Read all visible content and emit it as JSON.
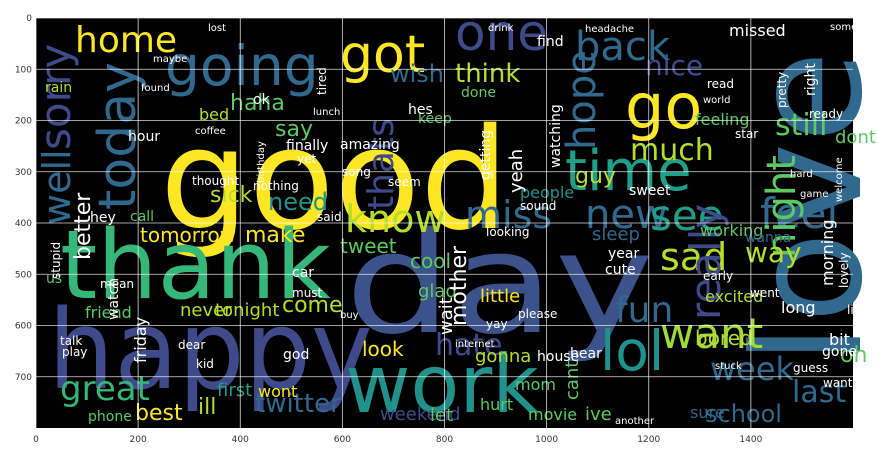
{
  "figure": {
    "background": "#ffffff",
    "plot_background": "#000000",
    "grid": true,
    "grid_color": "#ffffff",
    "x_ticks": [
      "0",
      "200",
      "400",
      "600",
      "800",
      "1000",
      "1200",
      "1400"
    ],
    "y_ticks": [
      "0",
      "100",
      "200",
      "300",
      "400",
      "500",
      "600",
      "700"
    ]
  },
  "wordcloud": {
    "palette": "viridis",
    "words": [
      {
        "text": "good",
        "color": "#fde725"
      },
      {
        "text": "day",
        "color": "#3b528b"
      },
      {
        "text": "love",
        "color": "#31688e"
      },
      {
        "text": "happy",
        "color": "#3e4a89"
      },
      {
        "text": "thank",
        "color": "#35b779"
      },
      {
        "text": "work",
        "color": "#21918c"
      },
      {
        "text": "got",
        "color": "#fde725"
      },
      {
        "text": "go",
        "color": "#fde725"
      },
      {
        "text": "going",
        "color": "#31688e"
      },
      {
        "text": "one",
        "color": "#3e4a89"
      },
      {
        "text": "home",
        "color": "#fde725"
      },
      {
        "text": "today",
        "color": "#31688e"
      },
      {
        "text": "back",
        "color": "#31688e"
      },
      {
        "text": "time",
        "color": "#1f9e89"
      },
      {
        "text": "know",
        "color": "#b5de2b"
      },
      {
        "text": "miss",
        "color": "#31688e"
      },
      {
        "text": "new",
        "color": "#31688e"
      },
      {
        "text": "see",
        "color": "#1f9e89"
      },
      {
        "text": "feel",
        "color": "#31688e"
      },
      {
        "text": "want",
        "color": "#a0da39"
      },
      {
        "text": "lol",
        "color": "#21918c"
      },
      {
        "text": "sad",
        "color": "#b5de2b"
      },
      {
        "text": "fun",
        "color": "#31688e"
      },
      {
        "text": "night",
        "color": "#5ec962"
      },
      {
        "text": "great",
        "color": "#35b779"
      },
      {
        "text": "last",
        "color": "#31688e"
      },
      {
        "text": "twitter",
        "color": "#31688e"
      },
      {
        "text": "much",
        "color": "#b5de2b"
      },
      {
        "text": "well",
        "color": "#31688e"
      },
      {
        "text": "sorry",
        "color": "#3e4a89"
      },
      {
        "text": "still",
        "color": "#5ec962"
      },
      {
        "text": "nice",
        "color": "#3e4a89"
      },
      {
        "text": "think",
        "color": "#b5de2b"
      },
      {
        "text": "wish",
        "color": "#31688e"
      },
      {
        "text": "haha",
        "color": "#5ec962"
      },
      {
        "text": "tomorrow",
        "color": "#fde725"
      },
      {
        "text": "make",
        "color": "#fde725"
      },
      {
        "text": "need",
        "color": "#21918c"
      },
      {
        "text": "thats",
        "color": "#3e4a89"
      },
      {
        "text": "really",
        "color": "#3e4a89"
      },
      {
        "text": "way",
        "color": "#b5de2b"
      },
      {
        "text": "hope",
        "color": "#31688e"
      },
      {
        "text": "come",
        "color": "#b5de2b"
      },
      {
        "text": "tonight",
        "color": "#b5de2b"
      },
      {
        "text": "never",
        "color": "#b5de2b"
      },
      {
        "text": "look",
        "color": "#fde725"
      },
      {
        "text": "hate",
        "color": "#3e4a89"
      },
      {
        "text": "week",
        "color": "#31688e"
      },
      {
        "text": "oh",
        "color": "#5ec962"
      },
      {
        "text": "ill",
        "color": "#b5de2b"
      },
      {
        "text": "best",
        "color": "#fde725"
      },
      {
        "text": "first",
        "color": "#1f9e89"
      },
      {
        "text": "wont",
        "color": "#fde725"
      },
      {
        "text": "weekend",
        "color": "#3e4a89"
      },
      {
        "text": "school",
        "color": "#31688e"
      },
      {
        "text": "sure",
        "color": "#31688e"
      },
      {
        "text": "bored",
        "color": "#b5de2b"
      },
      {
        "text": "friend",
        "color": "#5ec962"
      },
      {
        "text": "people",
        "color": "#21918c"
      },
      {
        "text": "guy",
        "color": "#b5de2b"
      },
      {
        "text": "sleep",
        "color": "#31688e"
      },
      {
        "text": "little",
        "color": "#fde725"
      },
      {
        "text": "gonna",
        "color": "#b5de2b"
      },
      {
        "text": "say",
        "color": "#5ec962"
      },
      {
        "text": "sick",
        "color": "#b5de2b"
      },
      {
        "text": "call",
        "color": "#5ec962"
      },
      {
        "text": "excited",
        "color": "#b5de2b"
      },
      {
        "text": "working",
        "color": "#5ec962"
      },
      {
        "text": "wanna",
        "color": "#31688e"
      },
      {
        "text": "dont",
        "color": "#5ec962"
      },
      {
        "text": "keep",
        "color": "#5ec962"
      },
      {
        "text": "cool",
        "color": "#5ec962"
      },
      {
        "text": "tweet",
        "color": "#5ec962"
      },
      {
        "text": "glad",
        "color": "#5ec962"
      },
      {
        "text": "done",
        "color": "#5ec962"
      },
      {
        "text": "bed",
        "color": "#b5de2b"
      },
      {
        "text": "rain",
        "color": "#b5de2b"
      },
      {
        "text": "us",
        "color": "#5ec962"
      },
      {
        "text": "phone",
        "color": "#5ec962"
      },
      {
        "text": "feeling",
        "color": "#5ec962"
      },
      {
        "text": "movie",
        "color": "#5ec962"
      },
      {
        "text": "let",
        "color": "#5ec962"
      },
      {
        "text": "ive",
        "color": "#5ec962"
      },
      {
        "text": "mom",
        "color": "#5ec962"
      },
      {
        "text": "hurt",
        "color": "#5ec962"
      },
      {
        "text": "cant",
        "color": "#5ec962"
      },
      {
        "text": "lost",
        "color": "#ffffff"
      },
      {
        "text": "missed",
        "color": "#ffffff"
      },
      {
        "text": "headache",
        "color": "#ffffff"
      },
      {
        "text": "someone",
        "color": "#ffffff"
      },
      {
        "text": "find",
        "color": "#ffffff"
      },
      {
        "text": "maybe",
        "color": "#ffffff"
      },
      {
        "text": "drink",
        "color": "#ffffff"
      },
      {
        "text": "lunch",
        "color": "#ffffff"
      },
      {
        "text": "coffee",
        "color": "#ffffff"
      },
      {
        "text": "found",
        "color": "#ffffff"
      },
      {
        "text": "hes",
        "color": "#ffffff"
      },
      {
        "text": "ok",
        "color": "#ffffff"
      },
      {
        "text": "yet",
        "color": "#ffffff"
      },
      {
        "text": "finally",
        "color": "#ffffff"
      },
      {
        "text": "amazing",
        "color": "#ffffff"
      },
      {
        "text": "song",
        "color": "#ffffff"
      },
      {
        "text": "seem",
        "color": "#ffffff"
      },
      {
        "text": "nothing",
        "color": "#ffffff"
      },
      {
        "text": "said",
        "color": "#ffffff"
      },
      {
        "text": "car",
        "color": "#ffffff"
      },
      {
        "text": "must",
        "color": "#ffffff"
      },
      {
        "text": "buy",
        "color": "#ffffff"
      },
      {
        "text": "god",
        "color": "#ffffff"
      },
      {
        "text": "kid",
        "color": "#ffffff"
      },
      {
        "text": "dear",
        "color": "#ffffff"
      },
      {
        "text": "sweet",
        "color": "#ffffff"
      },
      {
        "text": "cute",
        "color": "#ffffff"
      },
      {
        "text": "year",
        "color": "#ffffff"
      },
      {
        "text": "yay",
        "color": "#ffffff"
      },
      {
        "text": "please",
        "color": "#ffffff"
      },
      {
        "text": "early",
        "color": "#ffffff"
      },
      {
        "text": "long",
        "color": "#ffffff"
      },
      {
        "text": "went",
        "color": "#ffffff"
      },
      {
        "text": "life",
        "color": "#ffffff"
      },
      {
        "text": "bit",
        "color": "#ffffff"
      },
      {
        "text": "gone",
        "color": "#ffffff"
      },
      {
        "text": "guess",
        "color": "#ffffff"
      },
      {
        "text": "wanted",
        "color": "#ffffff"
      },
      {
        "text": "internet",
        "color": "#ffffff"
      },
      {
        "text": "house",
        "color": "#ffffff"
      },
      {
        "text": "hear",
        "color": "#ffffff"
      },
      {
        "text": "sound",
        "color": "#ffffff"
      },
      {
        "text": "looking",
        "color": "#ffffff"
      },
      {
        "text": "getting",
        "color": "#ffffff"
      },
      {
        "text": "ready",
        "color": "#ffffff"
      },
      {
        "text": "world",
        "color": "#ffffff"
      },
      {
        "text": "read",
        "color": "#ffffff"
      },
      {
        "text": "watching",
        "color": "#ffffff"
      },
      {
        "text": "play",
        "color": "#ffffff"
      },
      {
        "text": "talk",
        "color": "#ffffff"
      },
      {
        "text": "mean",
        "color": "#ffffff"
      },
      {
        "text": "stupid",
        "color": "#ffffff"
      },
      {
        "text": "hey",
        "color": "#ffffff"
      },
      {
        "text": "birthday",
        "color": "#ffffff"
      },
      {
        "text": "thought",
        "color": "#ffffff"
      },
      {
        "text": "stuck",
        "color": "#ffffff"
      },
      {
        "text": "another",
        "color": "#ffffff"
      },
      {
        "text": "welcome",
        "color": "#ffffff"
      },
      {
        "text": "game",
        "color": "#ffffff"
      },
      {
        "text": "hard",
        "color": "#ffffff"
      },
      {
        "text": "star",
        "color": "#ffffff"
      },
      {
        "text": "pretty",
        "color": "#ffffff"
      },
      {
        "text": "right",
        "color": "#ffffff"
      },
      {
        "text": "wait",
        "color": "#ffffff"
      },
      {
        "text": "mother",
        "color": "#ffffff"
      },
      {
        "text": "yeah",
        "color": "#ffffff"
      },
      {
        "text": "friday",
        "color": "#ffffff"
      },
      {
        "text": "hour",
        "color": "#ffffff"
      },
      {
        "text": "better",
        "color": "#ffffff"
      },
      {
        "text": "watch",
        "color": "#ffffff"
      },
      {
        "text": "morning",
        "color": "#ffffff"
      },
      {
        "text": "lovely",
        "color": "#ffffff"
      },
      {
        "text": "tired",
        "color": "#ffffff"
      }
    ]
  }
}
